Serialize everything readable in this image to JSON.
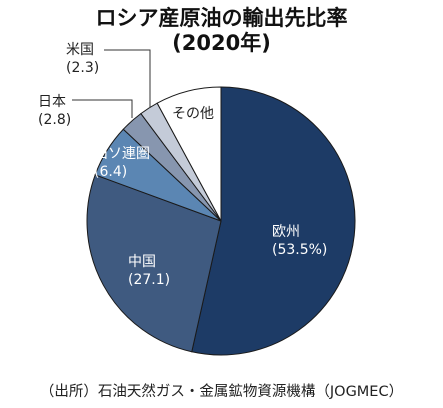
{
  "title": {
    "line1": "ロシア産原油の輸出先比率",
    "line2": "(2020年)"
  },
  "chart_data": {
    "type": "pie",
    "title": "ロシア産原油の輸出先比率(2020年)",
    "slices": [
      {
        "label": "欧州",
        "value": 53.5,
        "value_text": "(53.5%)",
        "color": "#1d3b66"
      },
      {
        "label": "中国",
        "value": 27.1,
        "value_text": "(27.1)",
        "color": "#3f5a80"
      },
      {
        "label": "旧ソ連圏",
        "value": 6.4,
        "value_text": "(6.4)",
        "color": "#5b86b3"
      },
      {
        "label": "日本",
        "value": 2.8,
        "value_text": "(2.8)",
        "color": "#8796af"
      },
      {
        "label": "米国",
        "value": 2.3,
        "value_text": "(2.3)",
        "color": "#c4cbd8"
      },
      {
        "label": "その他",
        "value": 7.9,
        "value_text": "",
        "color": "#ffffff"
      }
    ]
  },
  "source": "（出所）石油天然ガス・金属鉱物資源機構（JOGMEC）"
}
